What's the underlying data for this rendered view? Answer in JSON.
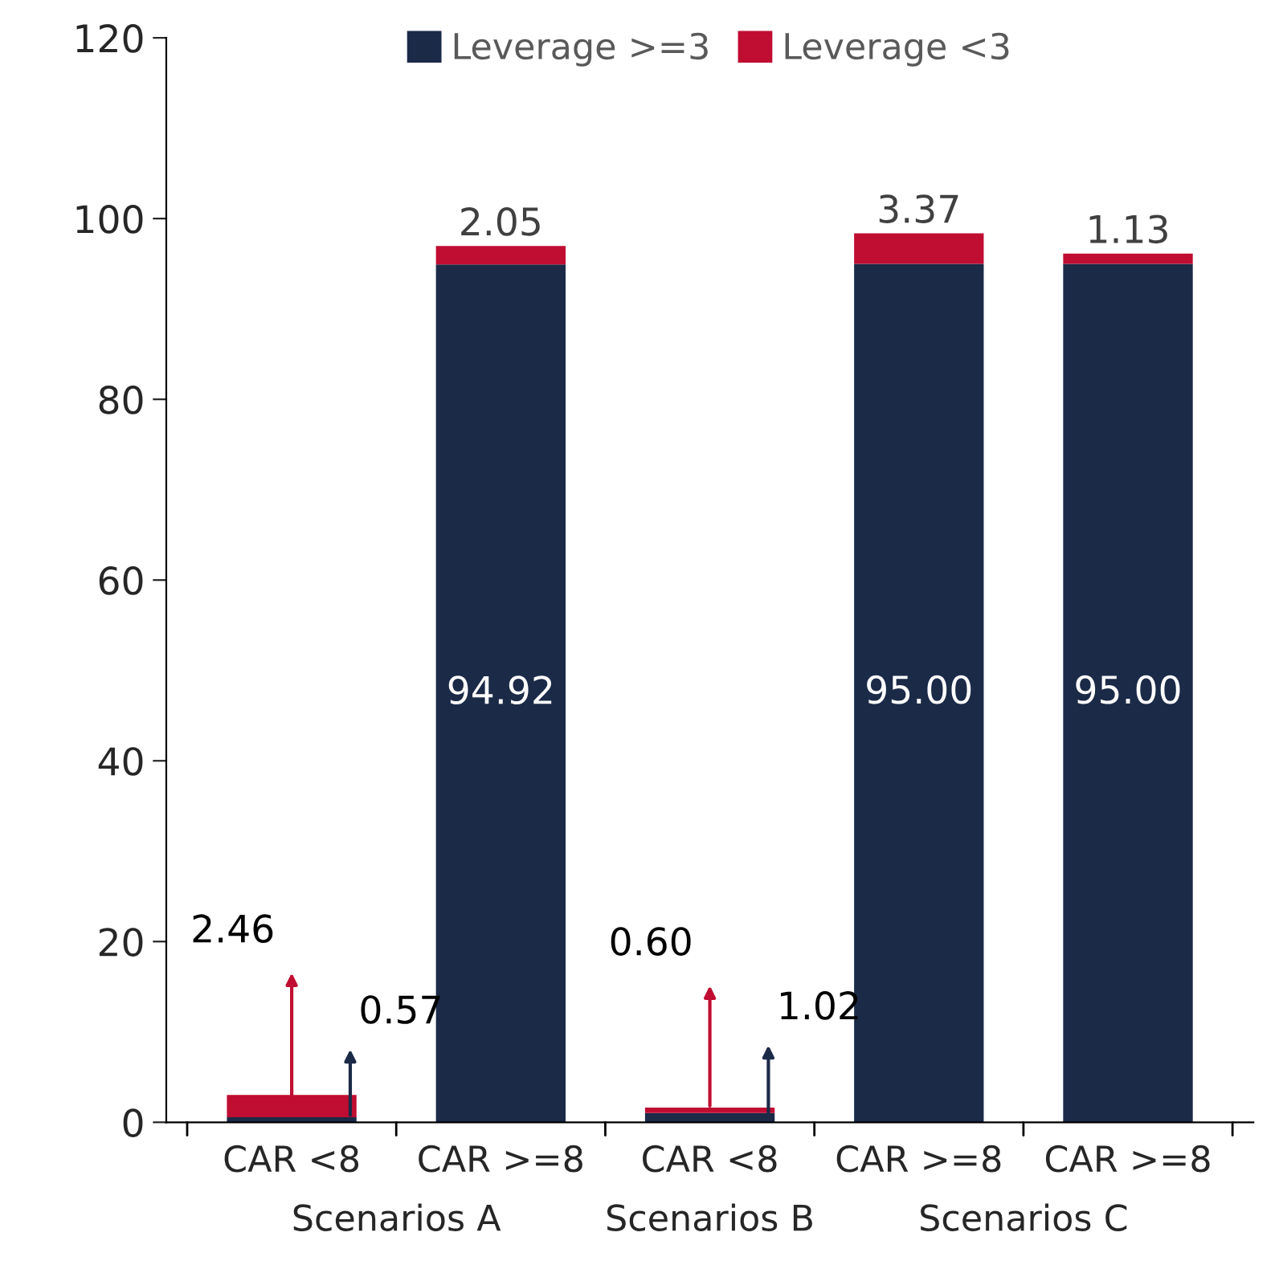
{
  "chart_data": {
    "type": "bar",
    "stacked": true,
    "categories": [
      "CAR <8",
      "CAR >=8",
      "CAR <8",
      "CAR >=8",
      "CAR >=8"
    ],
    "series": [
      {
        "name": "Leverage >=3",
        "color": "#1b2a47",
        "values": [
          0.57,
          94.92,
          1.02,
          95.0,
          95.0
        ],
        "value_labels": [
          "0.57",
          "94.92",
          "1.02",
          "95.00",
          "95.00"
        ]
      },
      {
        "name": "Leverage <3",
        "color": "#c00d32",
        "values": [
          2.46,
          2.05,
          0.6,
          3.37,
          1.13
        ],
        "value_labels": [
          "2.46",
          "2.05",
          "0.60",
          "3.37",
          "1.13"
        ]
      }
    ],
    "annotations": [
      "Scenarios A",
      "Scenarios B",
      "Scenarios C"
    ],
    "ylim": [
      0,
      120
    ],
    "yticks": [
      0,
      20,
      40,
      60,
      80,
      100,
      120
    ],
    "grid": false,
    "legend": "top"
  }
}
